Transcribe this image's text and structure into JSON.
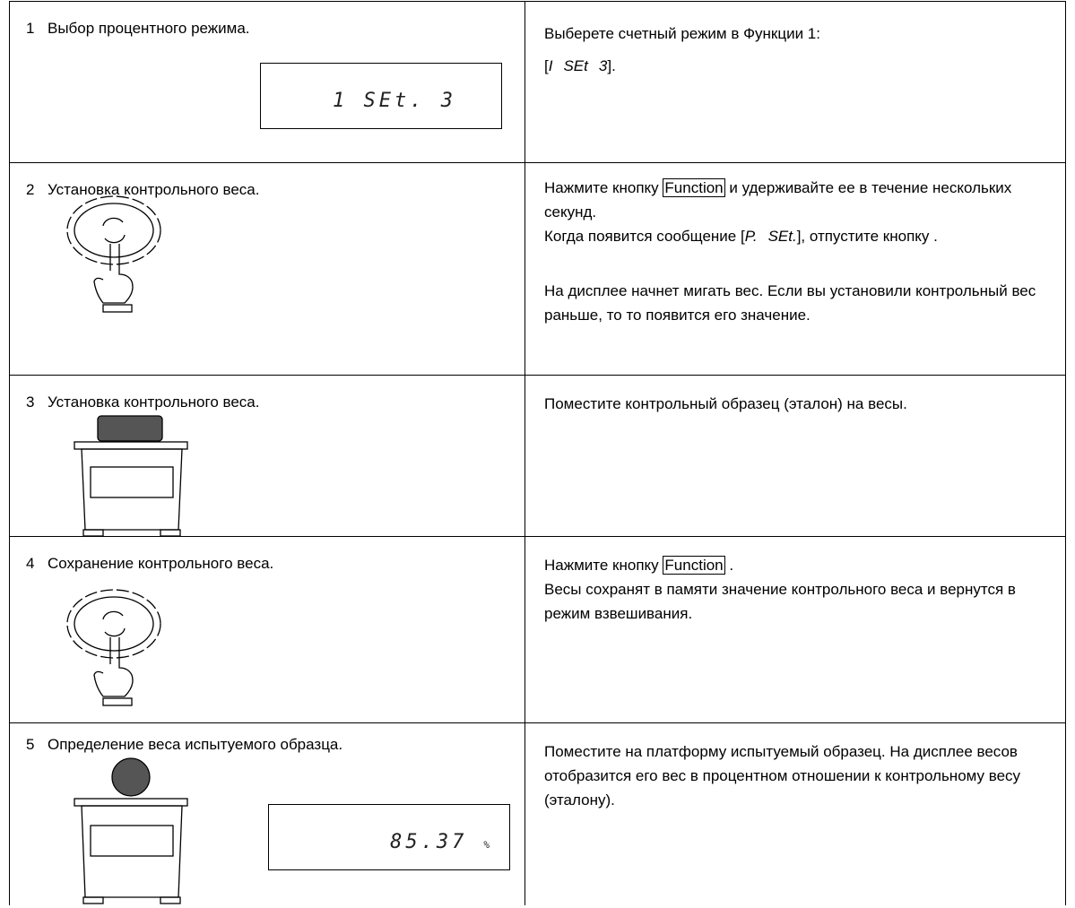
{
  "rows": [
    {
      "number": "1",
      "title": "Выбор процентного режима.",
      "display": "1 SEt. 3",
      "instructions": [
        [
          "Выберете счетный режим в Функции 1:"
        ],
        [
          "[",
          "I",
          "SEt",
          "3",
          "]."
        ]
      ]
    },
    {
      "number": "2",
      "title": "Установка контрольного веса.",
      "instructions": [
        [
          "Нажмите кнопку",
          "Function",
          "и удерживайте ее в течение нескольких секунд."
        ],
        [
          "Когда появится сообщение [",
          "P.",
          "SEt.",
          "], отпустите кнопку ."
        ],
        [
          "На дисплее начнет мигать вес. Если вы установили контрольный вес раньше, то то появится его значение."
        ]
      ]
    },
    {
      "number": "3",
      "title": "Установка контрольного веса.",
      "instructions": [
        [
          "Поместите контрольный образец (эталон) на весы."
        ]
      ]
    },
    {
      "number": "4",
      "title": "Сохранение контрольного веса.",
      "instructions": [
        [
          "Нажмите кнопку",
          "Function",
          "."
        ],
        [
          "Весы сохранят в памяти значение контрольного веса и вернутся в режим взвешивания."
        ]
      ]
    },
    {
      "number": "5",
      "title": "Определение веса испытуемого образца.",
      "display": "85.37",
      "display_unit": "%",
      "instructions": [
        [
          "Поместите на платформу испытуемый образец. На дисплее весов отобразится его вес в процентном отношении к контрольному весу (эталону)."
        ]
      ]
    }
  ]
}
